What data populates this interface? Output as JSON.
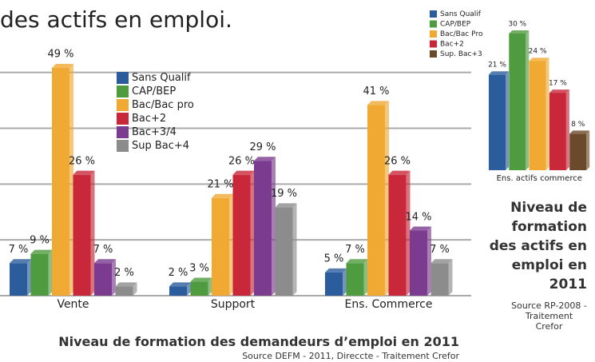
{
  "chart_data": [
    {
      "type": "bar",
      "heading": "des actifs en emploi.",
      "title": "Niveau de formation des demandeurs d’emploi en 2011",
      "source": "Source DEFM - 2011, Direccte - Traitement Crefor",
      "categories": [
        "Vente",
        "Support",
        "Ens. Commerce"
      ],
      "ylim": [
        0,
        50
      ],
      "yticks": [
        0,
        12,
        24,
        36,
        48
      ],
      "grid": true,
      "series": [
        {
          "name": "Sans Qualif",
          "color": "#2b5c9c",
          "values": [
            7,
            2,
            5
          ],
          "value_labels": [
            "7 %",
            "2 %",
            "5 %"
          ]
        },
        {
          "name": "CAP/BEP",
          "color": "#4f9b3f",
          "values": [
            9,
            3,
            7
          ],
          "value_labels": [
            "9 %",
            "3 %",
            "7 %"
          ]
        },
        {
          "name": "Bac/Bac pro",
          "color": "#f0a932",
          "values": [
            49,
            21,
            41
          ],
          "value_labels": [
            "49 %",
            "21 %",
            "41 %"
          ]
        },
        {
          "name": "Bac+2",
          "color": "#c8283a",
          "values": [
            26,
            26,
            26
          ],
          "value_labels": [
            "26 %",
            "26 %",
            "26 %"
          ]
        },
        {
          "name": "Bac+3/4",
          "color": "#7b3b8f",
          "values": [
            7,
            29,
            14
          ],
          "value_labels": [
            "7 %",
            "29 %",
            "14 %"
          ]
        },
        {
          "name": "Sup Bac+4",
          "color": "#8c8c8c",
          "values": [
            2,
            19,
            7
          ],
          "value_labels": [
            "2 %",
            "19 %",
            "7 %"
          ]
        }
      ]
    },
    {
      "type": "bar",
      "title": "Niveau de formation des actifs en emploi en 2011",
      "source": "Source RP-2008 -Traitement Crefor",
      "categories": [
        "Ens. actifs commerce"
      ],
      "ylim": [
        0,
        30
      ],
      "grid": false,
      "series": [
        {
          "name": "Sans Qualif",
          "color": "#2b5c9c",
          "values": [
            21
          ],
          "value_labels": [
            "21 %"
          ]
        },
        {
          "name": "CAP/BEP",
          "color": "#4f9b3f",
          "values": [
            30
          ],
          "value_labels": [
            "30 %"
          ]
        },
        {
          "name": "Bac/Bac Pro",
          "color": "#f0a932",
          "values": [
            24
          ],
          "value_labels": [
            "24 %"
          ]
        },
        {
          "name": "Bac+2",
          "color": "#c8283a",
          "values": [
            17
          ],
          "value_labels": [
            "17 %"
          ]
        },
        {
          "name": "Sup. Bac+3",
          "color": "#6b4a2b",
          "values": [
            8
          ],
          "value_labels": [
            "8 %"
          ]
        }
      ]
    }
  ]
}
